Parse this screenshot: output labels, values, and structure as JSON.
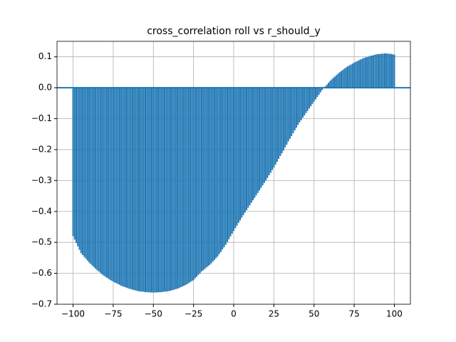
{
  "chart_data": {
    "type": "xcorr",
    "title": "cross_correlation roll vs r_should_y",
    "color": "#1f77b4",
    "grid": true,
    "xlim": [
      -110,
      110
    ],
    "ylim": [
      -0.7,
      0.15
    ],
    "xticks": [
      {
        "value": -100,
        "label": "−100"
      },
      {
        "value": -75,
        "label": "−75"
      },
      {
        "value": -50,
        "label": "−50"
      },
      {
        "value": -25,
        "label": "−25"
      },
      0,
      25,
      50,
      75,
      100
    ],
    "yticks": [
      {
        "value": -0.7,
        "label": "−0.7"
      },
      {
        "value": -0.6,
        "label": "−0.6"
      },
      {
        "value": -0.5,
        "label": "−0.5"
      },
      {
        "value": -0.4,
        "label": "−0.4"
      },
      {
        "value": -0.3,
        "label": "−0.3"
      },
      {
        "value": -0.2,
        "label": "−0.2"
      },
      {
        "value": -0.1,
        "label": "−0.1"
      },
      {
        "value": 0,
        "label": "0.0"
      },
      0.1
    ],
    "x": [
      -100,
      -99,
      -98,
      -97,
      -96,
      -95,
      -94,
      -93,
      -92,
      -91,
      -90,
      -89,
      -88,
      -87,
      -86,
      -85,
      -84,
      -83,
      -82,
      -81,
      -80,
      -79,
      -78,
      -77,
      -76,
      -75,
      -74,
      -73,
      -72,
      -71,
      -70,
      -69,
      -68,
      -67,
      -66,
      -65,
      -64,
      -63,
      -62,
      -61,
      -60,
      -59,
      -58,
      -57,
      -56,
      -55,
      -54,
      -53,
      -52,
      -51,
      -50,
      -49,
      -48,
      -47,
      -46,
      -45,
      -44,
      -43,
      -42,
      -41,
      -40,
      -39,
      -38,
      -37,
      -36,
      -35,
      -34,
      -33,
      -32,
      -31,
      -30,
      -29,
      -28,
      -27,
      -26,
      -25,
      -24,
      -23,
      -22,
      -21,
      -20,
      -19,
      -18,
      -17,
      -16,
      -15,
      -14,
      -13,
      -12,
      -11,
      -10,
      -9,
      -8,
      -7,
      -6,
      -5,
      -4,
      -3,
      -2,
      -1,
      0,
      1,
      2,
      3,
      4,
      5,
      6,
      7,
      8,
      9,
      10,
      11,
      12,
      13,
      14,
      15,
      16,
      17,
      18,
      19,
      20,
      21,
      22,
      23,
      24,
      25,
      26,
      27,
      28,
      29,
      30,
      31,
      32,
      33,
      34,
      35,
      36,
      37,
      38,
      39,
      40,
      41,
      42,
      43,
      44,
      45,
      46,
      47,
      48,
      49,
      50,
      51,
      52,
      53,
      54,
      55,
      56,
      57,
      58,
      59,
      60,
      61,
      62,
      63,
      64,
      65,
      66,
      67,
      68,
      69,
      70,
      71,
      72,
      73,
      74,
      75,
      76,
      77,
      78,
      79,
      80,
      81,
      82,
      83,
      84,
      85,
      86,
      87,
      88,
      89,
      90,
      91,
      92,
      93,
      94,
      95,
      96,
      97,
      98,
      99,
      100
    ],
    "values": [
      -0.48,
      -0.491,
      -0.502,
      -0.513,
      -0.524,
      -0.535,
      -0.541,
      -0.547,
      -0.553,
      -0.559,
      -0.565,
      -0.57,
      -0.575,
      -0.58,
      -0.585,
      -0.59,
      -0.594,
      -0.598,
      -0.603,
      -0.607,
      -0.611,
      -0.614,
      -0.617,
      -0.621,
      -0.624,
      -0.627,
      -0.63,
      -0.632,
      -0.635,
      -0.637,
      -0.64,
      -0.642,
      -0.644,
      -0.646,
      -0.648,
      -0.65,
      -0.651,
      -0.653,
      -0.654,
      -0.656,
      -0.657,
      -0.658,
      -0.659,
      -0.659,
      -0.66,
      -0.661,
      -0.661,
      -0.661,
      -0.662,
      -0.662,
      -0.662,
      -0.662,
      -0.662,
      -0.661,
      -0.661,
      -0.661,
      -0.66,
      -0.659,
      -0.659,
      -0.658,
      -0.657,
      -0.656,
      -0.654,
      -0.653,
      -0.651,
      -0.65,
      -0.648,
      -0.645,
      -0.643,
      -0.64,
      -0.638,
      -0.635,
      -0.632,
      -0.628,
      -0.625,
      -0.622,
      -0.616,
      -0.611,
      -0.605,
      -0.6,
      -0.594,
      -0.59,
      -0.586,
      -0.581,
      -0.577,
      -0.573,
      -0.568,
      -0.562,
      -0.557,
      -0.551,
      -0.546,
      -0.538,
      -0.531,
      -0.523,
      -0.516,
      -0.508,
      -0.499,
      -0.49,
      -0.481,
      -0.472,
      -0.463,
      -0.454,
      -0.446,
      -0.437,
      -0.429,
      -0.42,
      -0.412,
      -0.404,
      -0.396,
      -0.388,
      -0.38,
      -0.372,
      -0.364,
      -0.356,
      -0.348,
      -0.34,
      -0.332,
      -0.324,
      -0.316,
      -0.308,
      -0.3,
      -0.292,
      -0.283,
      -0.275,
      -0.266,
      -0.258,
      -0.249,
      -0.24,
      -0.23,
      -0.221,
      -0.212,
      -0.203,
      -0.193,
      -0.184,
      -0.174,
      -0.165,
      -0.156,
      -0.147,
      -0.138,
      -0.129,
      -0.12,
      -0.112,
      -0.105,
      -0.097,
      -0.09,
      -0.082,
      -0.075,
      -0.067,
      -0.06,
      -0.052,
      -0.045,
      -0.038,
      -0.03,
      -0.023,
      -0.015,
      -0.008,
      -0.002,
      0.004,
      0.01,
      0.016,
      0.022,
      0.027,
      0.032,
      0.036,
      0.041,
      0.046,
      0.05,
      0.054,
      0.058,
      0.062,
      0.066,
      0.069,
      0.072,
      0.075,
      0.078,
      0.081,
      0.084,
      0.086,
      0.089,
      0.091,
      0.094,
      0.096,
      0.098,
      0.099,
      0.101,
      0.103,
      0.104,
      0.105,
      0.107,
      0.108,
      0.109,
      0.109,
      0.11,
      0.11,
      0.111,
      0.111,
      0.11,
      0.11,
      0.109,
      0.108,
      0.107
    ]
  }
}
